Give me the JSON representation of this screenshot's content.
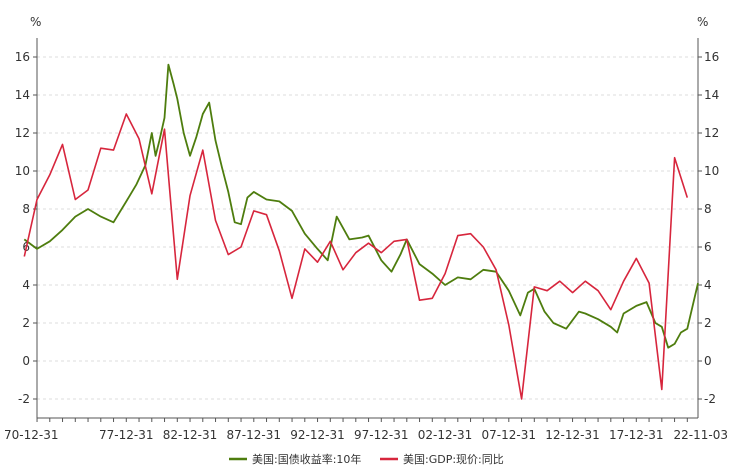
{
  "chart_data": {
    "type": "line",
    "left_unit": "%",
    "right_unit": "%",
    "ylim": [
      -3,
      17
    ],
    "y_ticks": [
      -2,
      0,
      2,
      4,
      6,
      8,
      10,
      12,
      14,
      16
    ],
    "x_range": [
      "1970-12-31",
      "2022-11-03"
    ],
    "x_tick_labels": [
      "70-12-31",
      "77-12-31",
      "82-12-31",
      "87-12-31",
      "92-12-31",
      "97-12-31",
      "02-12-31",
      "07-12-31",
      "12-12-31",
      "17-12-31",
      "22-11-03"
    ],
    "grid": true,
    "legend_position": "bottom",
    "series": [
      {
        "name": "美国:国债收益率:10年",
        "color": "#4e7d0e",
        "x": [
          1970.0,
          1971.0,
          1972.0,
          1973.0,
          1974.0,
          1975.0,
          1976.0,
          1977.0,
          1978.0,
          1978.8,
          1979.5,
          1980.0,
          1980.3,
          1980.6,
          1981.0,
          1981.3,
          1981.7,
          1982.0,
          1982.5,
          1983.0,
          1983.5,
          1984.0,
          1984.5,
          1985.0,
          1985.5,
          1986.0,
          1986.5,
          1987.0,
          1987.5,
          1988.0,
          1989.0,
          1990.0,
          1991.0,
          1992.0,
          1993.0,
          1993.8,
          1994.5,
          1995.5,
          1996.5,
          1997.0,
          1998.0,
          1998.8,
          1999.5,
          2000.0,
          2001.0,
          2002.0,
          2003.0,
          2004.0,
          2005.0,
          2006.0,
          2007.0,
          2008.0,
          2008.9,
          2009.5,
          2010.0,
          2010.8,
          2011.5,
          2012.5,
          2013.5,
          2014.0,
          2015.0,
          2016.0,
          2016.5,
          2017.0,
          2018.0,
          2018.8,
          2019.5,
          2020.0,
          2020.5,
          2021.0,
          2021.5,
          2022.0,
          2022.84
        ],
        "y": [
          6.4,
          5.9,
          6.3,
          6.9,
          7.6,
          8.0,
          7.6,
          7.3,
          8.4,
          9.3,
          10.3,
          12.0,
          10.8,
          11.6,
          12.8,
          15.6,
          14.6,
          13.8,
          12.0,
          10.8,
          11.8,
          13.0,
          13.6,
          11.6,
          10.2,
          8.9,
          7.3,
          7.2,
          8.6,
          8.9,
          8.5,
          8.4,
          7.9,
          6.7,
          5.9,
          5.3,
          7.6,
          6.4,
          6.5,
          6.6,
          5.3,
          4.7,
          5.6,
          6.4,
          5.1,
          4.6,
          4.0,
          4.4,
          4.3,
          4.8,
          4.7,
          3.7,
          2.4,
          3.6,
          3.8,
          2.6,
          2.0,
          1.7,
          2.6,
          2.5,
          2.2,
          1.8,
          1.5,
          2.5,
          2.9,
          3.1,
          2.0,
          1.8,
          0.7,
          0.9,
          1.5,
          1.7,
          4.1
        ]
      },
      {
        "name": "美国:GDP:现价:同比",
        "color": "#d7263d",
        "x": [
          1970,
          1971,
          1972,
          1973,
          1974,
          1975,
          1976,
          1977,
          1978,
          1979,
          1980,
          1981,
          1982,
          1983,
          1984,
          1985,
          1986,
          1987,
          1988,
          1989,
          1990,
          1991,
          1992,
          1993,
          1994,
          1995,
          1996,
          1997,
          1998,
          1999,
          2000,
          2001,
          2002,
          2003,
          2004,
          2005,
          2006,
          2007,
          2008,
          2009,
          2010,
          2011,
          2012,
          2013,
          2014,
          2015,
          2016,
          2017,
          2018,
          2019,
          2020,
          2021,
          2022
        ],
        "y": [
          5.5,
          8.5,
          9.8,
          11.4,
          8.5,
          9.0,
          11.2,
          11.1,
          13.0,
          11.7,
          8.8,
          12.2,
          4.3,
          8.7,
          11.1,
          7.4,
          5.6,
          6.0,
          7.9,
          7.7,
          5.8,
          3.3,
          5.9,
          5.2,
          6.3,
          4.8,
          5.7,
          6.2,
          5.7,
          6.3,
          6.4,
          3.2,
          3.3,
          4.6,
          6.6,
          6.7,
          6.0,
          4.8,
          1.9,
          -2.0,
          3.9,
          3.7,
          4.2,
          3.6,
          4.2,
          3.7,
          2.7,
          4.2,
          5.4,
          4.1,
          -1.5,
          10.7,
          8.6
        ]
      }
    ]
  }
}
